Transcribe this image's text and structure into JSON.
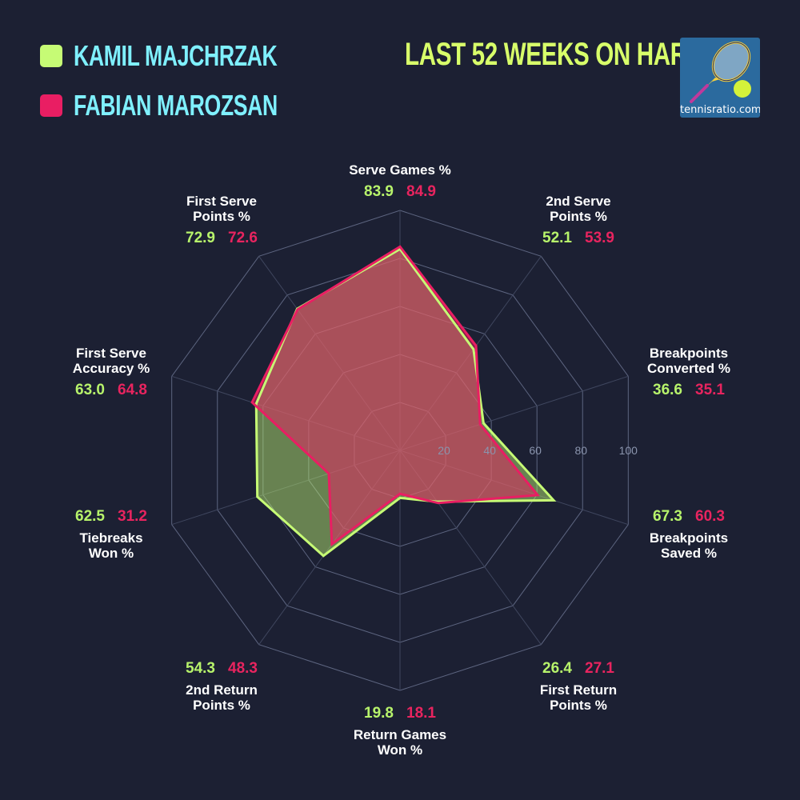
{
  "legend": {
    "players": [
      {
        "name": "KAMIL MAJCHRZAK",
        "color": "#c6fb75"
      },
      {
        "name": "FABIAN MAROZSAN",
        "color": "#e91e63"
      }
    ]
  },
  "title": "LAST 52 WEEKS ON HARD",
  "logo": {
    "text": "tennisratio.com"
  },
  "chart_data": {
    "type": "radar",
    "title": "LAST 52 WEEKS ON HARD",
    "categories": [
      "Serve Games %",
      "2nd Serve Points %",
      "Breakpoints Converted %",
      "Breakpoints Saved %",
      "First Return Points %",
      "Return Games Won %",
      "2nd Return Points %",
      "Tiebreaks Won %",
      "First Serve Accuracy %",
      "First Serve Points %"
    ],
    "series": [
      {
        "name": "Kamil Majchrzak",
        "color": "#c6fb75",
        "values": [
          83.9,
          52.1,
          36.6,
          67.3,
          26.4,
          19.8,
          54.3,
          62.5,
          63.0,
          72.9
        ]
      },
      {
        "name": "Fabian Marozsan",
        "color": "#e91e63",
        "values": [
          84.9,
          53.9,
          35.1,
          60.3,
          27.1,
          18.1,
          48.3,
          31.2,
          64.8,
          72.6
        ]
      }
    ],
    "radial_ticks": [
      "20",
      "40",
      "60",
      "80",
      "100"
    ],
    "range": [
      0,
      100
    ],
    "grid": true,
    "legend_position": "top-left"
  },
  "axes": [
    {
      "line1": "Serve Games %",
      "line2": "",
      "v1": "83.9",
      "v2": "84.9"
    },
    {
      "line1": "2nd Serve",
      "line2": "Points %",
      "v1": "52.1",
      "v2": "53.9"
    },
    {
      "line1": "Breakpoints",
      "line2": "Converted %",
      "v1": "36.6",
      "v2": "35.1"
    },
    {
      "line1": "Breakpoints",
      "line2": "Saved %",
      "v1": "67.3",
      "v2": "60.3"
    },
    {
      "line1": "First Return",
      "line2": "Points %",
      "v1": "26.4",
      "v2": "27.1"
    },
    {
      "line1": "Return Games",
      "line2": "Won %",
      "v1": "19.8",
      "v2": "18.1"
    },
    {
      "line1": "2nd Return",
      "line2": "Points %",
      "v1": "54.3",
      "v2": "48.3"
    },
    {
      "line1": "Tiebreaks",
      "line2": "Won %",
      "v1": "62.5",
      "v2": "31.2"
    },
    {
      "line1": "First Serve",
      "line2": "Accuracy %",
      "v1": "63.0",
      "v2": "64.8"
    },
    {
      "line1": "First Serve",
      "line2": "Points %",
      "v1": "72.9",
      "v2": "72.6"
    }
  ]
}
